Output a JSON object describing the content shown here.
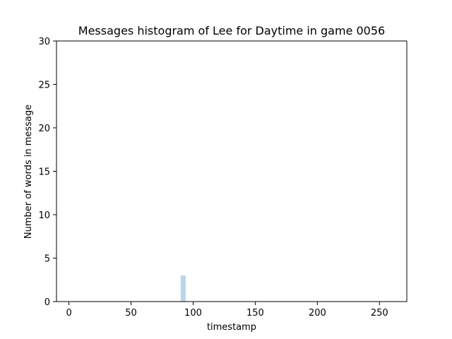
{
  "chart_data": {
    "type": "bar",
    "title": "Messages histogram of Lee for Daytime in game 0056",
    "xlabel": "timestamp",
    "ylabel": "Number of words in message",
    "xlim": [
      -10,
      272
    ],
    "ylim": [
      0,
      30
    ],
    "x_ticks": [
      0,
      50,
      100,
      150,
      200,
      250
    ],
    "y_ticks": [
      0,
      5,
      10,
      15,
      20,
      25,
      30
    ],
    "bar_width": 4,
    "bars": [
      {
        "x": 92,
        "value": 3
      }
    ],
    "grid": false,
    "legend": "none",
    "colors": {
      "bar": "#bcd6ea",
      "axis": "#000000",
      "background": "#ffffff"
    }
  }
}
